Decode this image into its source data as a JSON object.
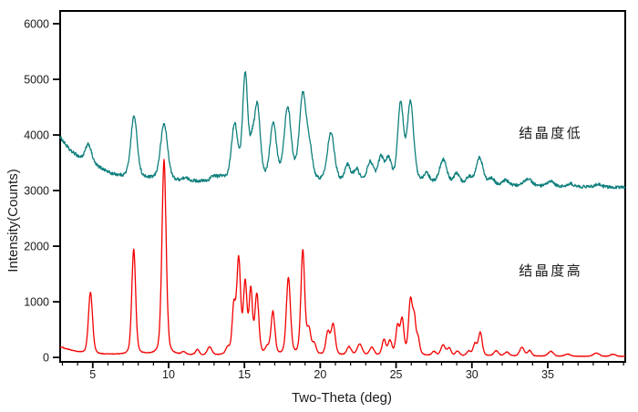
{
  "figure": {
    "background": "#ffffff",
    "frame_color": "#000000",
    "tick_color": "#000000",
    "text_color": "#1a1a1a"
  },
  "axes": {
    "x": {
      "label": "Two-Theta (deg)",
      "major_ticks": [
        5,
        10,
        15,
        20,
        25,
        30,
        35
      ],
      "minor_step": 1
    },
    "y": {
      "label": "Intensity(Counts)",
      "major_ticks": [
        0,
        1000,
        2000,
        3000,
        4000,
        5000,
        6000
      ]
    }
  },
  "chart_data": {
    "type": "line",
    "title": "",
    "xlabel": "Two-Theta (deg)",
    "ylabel": "Intensity(Counts)",
    "xlim": [
      2.85,
      40.11
    ],
    "ylim": [
      -80,
      6230
    ],
    "grid": false,
    "legend_position": "none",
    "peaks_format": [
      "two_theta_deg",
      "intensity_above_baseline_counts",
      "fwhm_deg"
    ],
    "baseline_format": [
      "two_theta_deg",
      "intensity_counts"
    ],
    "series": [
      {
        "name": "结晶度低",
        "color": "#0f807d",
        "line_width": 1.3,
        "noise": {
          "base": 10,
          "sqrt_coeff": 0.32
        },
        "baseline": [
          [
            2.85,
            3960
          ],
          [
            3.5,
            3720
          ],
          [
            4.3,
            3560
          ],
          [
            5.0,
            3460
          ],
          [
            5.6,
            3390
          ],
          [
            6.2,
            3300
          ],
          [
            7.0,
            3245
          ],
          [
            8.0,
            3215
          ],
          [
            9.0,
            3200
          ],
          [
            10.5,
            3170
          ],
          [
            12,
            3165
          ],
          [
            14,
            3160
          ],
          [
            17,
            3150
          ],
          [
            20,
            3145
          ],
          [
            22,
            3140
          ],
          [
            24,
            3135
          ],
          [
            26.5,
            3125
          ],
          [
            28,
            3120
          ],
          [
            30,
            3105
          ],
          [
            32,
            3090
          ],
          [
            34,
            3080
          ],
          [
            36,
            3070
          ],
          [
            38,
            3065
          ],
          [
            40.11,
            3060
          ]
        ],
        "peaks": [
          [
            4.72,
            330,
            0.5
          ],
          [
            7.72,
            1110,
            0.5
          ],
          [
            9.7,
            1010,
            0.55
          ],
          [
            11.1,
            50,
            0.5
          ],
          [
            13.0,
            90,
            0.5
          ],
          [
            13.5,
            70,
            0.4
          ],
          [
            14.35,
            1000,
            0.5
          ],
          [
            15.05,
            1890,
            0.4
          ],
          [
            15.5,
            500,
            0.35
          ],
          [
            15.85,
            1310,
            0.45
          ],
          [
            16.9,
            1030,
            0.5
          ],
          [
            17.85,
            1300,
            0.55
          ],
          [
            18.85,
            1550,
            0.55
          ],
          [
            19.3,
            480,
            0.45
          ],
          [
            20.7,
            890,
            0.55
          ],
          [
            21.8,
            300,
            0.45
          ],
          [
            22.4,
            230,
            0.45
          ],
          [
            23.3,
            360,
            0.5
          ],
          [
            24.0,
            430,
            0.45
          ],
          [
            24.5,
            410,
            0.45
          ],
          [
            25.3,
            1390,
            0.45
          ],
          [
            25.95,
            1430,
            0.5
          ],
          [
            27.0,
            160,
            0.45
          ],
          [
            28.1,
            430,
            0.55
          ],
          [
            29.0,
            180,
            0.45
          ],
          [
            29.8,
            120,
            0.45
          ],
          [
            30.5,
            490,
            0.55
          ],
          [
            31.3,
            110,
            0.45
          ],
          [
            32.2,
            90,
            0.5
          ],
          [
            33.7,
            130,
            0.6
          ],
          [
            35.2,
            90,
            0.5
          ],
          [
            36.5,
            50,
            0.5
          ],
          [
            38.3,
            50,
            0.5
          ]
        ]
      },
      {
        "name": "结晶度高",
        "color": "#f40000",
        "line_width": 1.3,
        "noise": {
          "base": 4,
          "sqrt_coeff": 0.18
        },
        "baseline": [
          [
            2.85,
            190
          ],
          [
            3.3,
            150
          ],
          [
            4.0,
            95
          ],
          [
            4.5,
            70
          ],
          [
            5.5,
            55
          ],
          [
            7,
            50
          ],
          [
            9,
            45
          ],
          [
            12,
            40
          ],
          [
            16,
            40
          ],
          [
            20,
            38
          ],
          [
            24,
            35
          ],
          [
            28,
            30
          ],
          [
            32,
            25
          ],
          [
            36,
            20
          ],
          [
            40.11,
            18
          ]
        ],
        "peaks": [
          [
            4.85,
            1105,
            0.32
          ],
          [
            7.7,
            1890,
            0.3
          ],
          [
            9.7,
            3505,
            0.33
          ],
          [
            11.0,
            50,
            0.3
          ],
          [
            11.9,
            100,
            0.3
          ],
          [
            12.7,
            150,
            0.35
          ],
          [
            13.9,
            120,
            0.3
          ],
          [
            14.3,
            820,
            0.26
          ],
          [
            14.62,
            1700,
            0.3
          ],
          [
            15.05,
            1260,
            0.28
          ],
          [
            15.42,
            1120,
            0.26
          ],
          [
            15.82,
            1060,
            0.3
          ],
          [
            16.5,
            120,
            0.3
          ],
          [
            16.88,
            770,
            0.3
          ],
          [
            17.9,
            1380,
            0.32
          ],
          [
            18.85,
            1860,
            0.3
          ],
          [
            19.25,
            430,
            0.3
          ],
          [
            19.6,
            180,
            0.3
          ],
          [
            20.5,
            400,
            0.3
          ],
          [
            20.85,
            550,
            0.32
          ],
          [
            21.9,
            150,
            0.35
          ],
          [
            22.6,
            200,
            0.4
          ],
          [
            23.4,
            140,
            0.35
          ],
          [
            24.2,
            270,
            0.3
          ],
          [
            24.6,
            250,
            0.3
          ],
          [
            25.1,
            500,
            0.28
          ],
          [
            25.4,
            620,
            0.28
          ],
          [
            25.95,
            970,
            0.3
          ],
          [
            26.2,
            580,
            0.25
          ],
          [
            26.45,
            280,
            0.25
          ],
          [
            27.5,
            70,
            0.3
          ],
          [
            28.1,
            190,
            0.35
          ],
          [
            28.5,
            130,
            0.3
          ],
          [
            29.05,
            80,
            0.3
          ],
          [
            29.8,
            80,
            0.3
          ],
          [
            30.2,
            210,
            0.28
          ],
          [
            30.55,
            420,
            0.3
          ],
          [
            31.6,
            90,
            0.35
          ],
          [
            32.3,
            70,
            0.35
          ],
          [
            33.3,
            160,
            0.35
          ],
          [
            33.8,
            100,
            0.3
          ],
          [
            35.2,
            90,
            0.4
          ],
          [
            36.3,
            40,
            0.4
          ],
          [
            38.2,
            60,
            0.45
          ],
          [
            39.3,
            40,
            0.4
          ]
        ]
      }
    ],
    "annotations": [
      {
        "text": "结晶度低",
        "color": "#2f8f8c",
        "x_deg": 35.2,
        "y_counts": 4030
      },
      {
        "text": "结晶度高",
        "color": "#f4555a",
        "x_deg": 35.2,
        "y_counts": 1560
      }
    ]
  }
}
